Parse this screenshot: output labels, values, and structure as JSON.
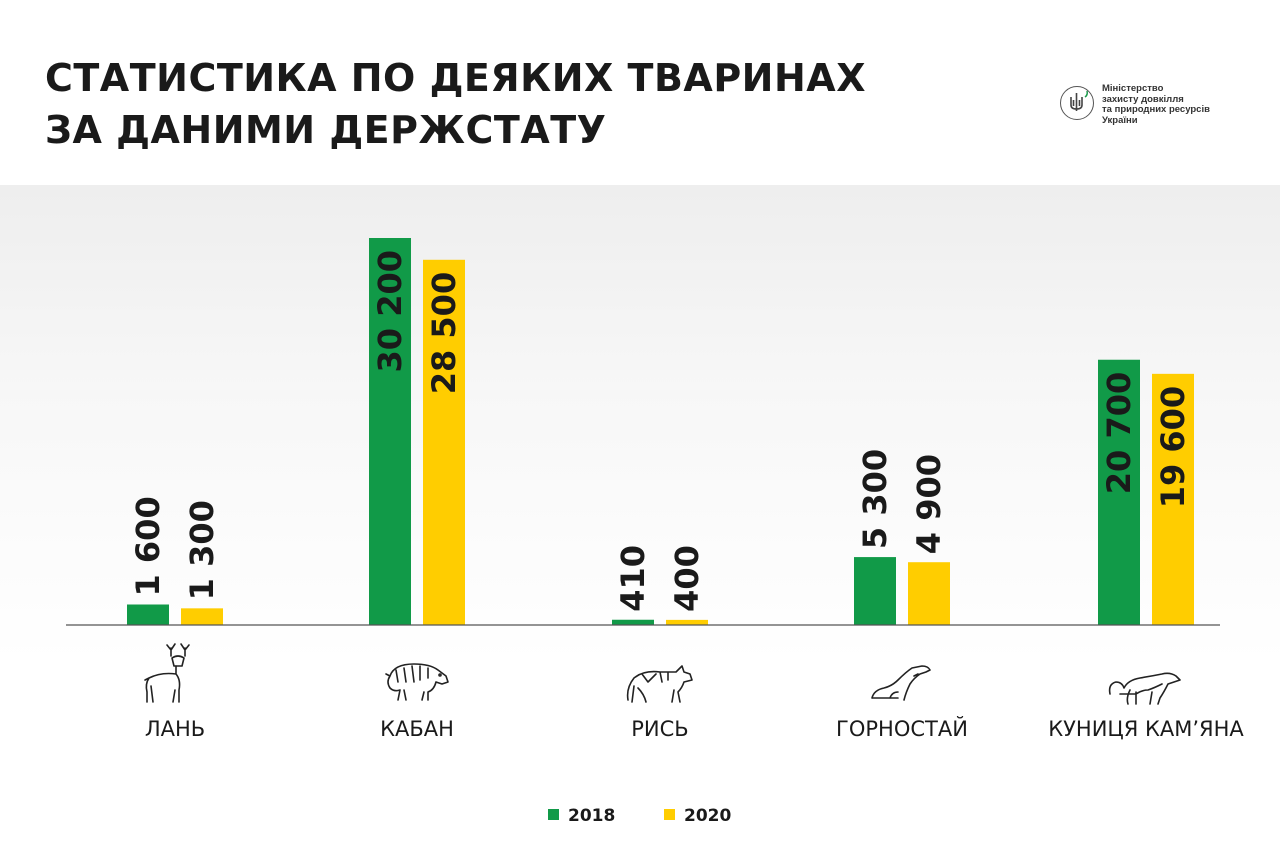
{
  "header": {
    "title_line1": "СТАТИСТИКА ПО ДЕЯКИХ ТВАРИНАХ",
    "title_line2": "ЗА ДАНИМИ ДЕРЖСТАТУ"
  },
  "logo": {
    "line1": "Міністерство",
    "line2": "захисту довкілля",
    "line3": "та природних ресурсів",
    "line4": "України",
    "icon": "trident-emblem-icon"
  },
  "colors": {
    "series_2018": "#119a48",
    "series_2020": "#ffcd00",
    "text": "#1a1a1a"
  },
  "chart_data": {
    "type": "bar",
    "title": "СТАТИСТИКА ПО ДЕЯКИХ ТВАРИНАХ ЗА ДАНИМИ ДЕРЖСТАТУ",
    "categories": [
      "ЛАНЬ",
      "КАБАН",
      "РИСЬ",
      "ГОРНОСТАЙ",
      "КУНИЦЯ КАМ’ЯНА"
    ],
    "category_icons": [
      "deer-icon",
      "boar-icon",
      "lynx-icon",
      "stoat-icon",
      "stone-marten-icon"
    ],
    "series": [
      {
        "name": "2018",
        "values": [
          1600,
          30200,
          410,
          5300,
          20700
        ],
        "labels": [
          "1 600",
          "30 200",
          "410",
          "5 300",
          "20 700"
        ]
      },
      {
        "name": "2020",
        "values": [
          1300,
          28500,
          400,
          4900,
          19600
        ],
        "labels": [
          "1 300",
          "28 500",
          "400",
          "4 900",
          "19 600"
        ]
      }
    ],
    "xlabel": "",
    "ylabel": "",
    "ylim": [
      0,
      30200
    ],
    "grid": false,
    "legend": "bottom-center"
  }
}
